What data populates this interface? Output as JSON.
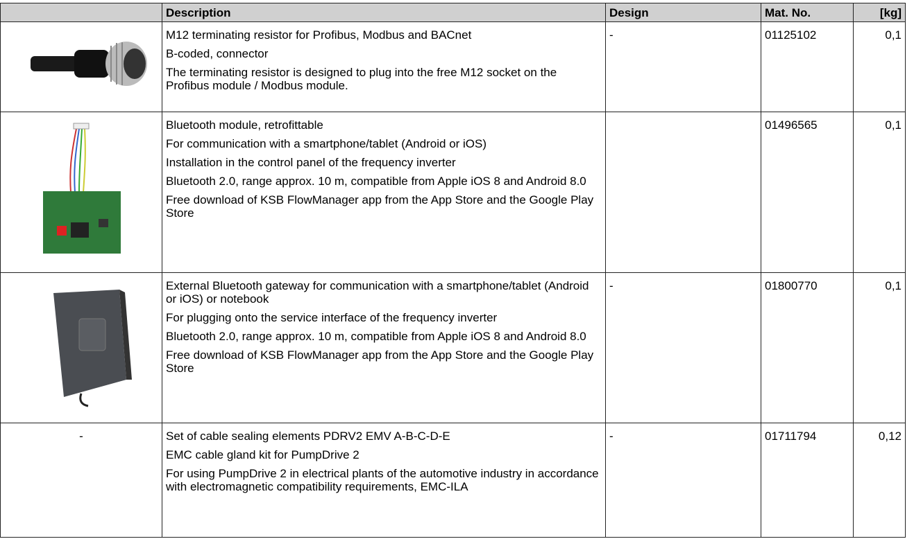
{
  "table": {
    "header": [
      "Description",
      "Design",
      "Mat. No.",
      "[kg]"
    ],
    "rows": [
      {
        "description": [
          "M12 terminating resistor for Profibus, Modbus and BACnet",
          "B-coded, connector",
          "The terminating resistor is designed to plug into the free M12 socket on the Profibus module / Modbus module."
        ],
        "design": "-",
        "mat_no": "01125102",
        "weight": "0,1"
      },
      {
        "description": [
          "Bluetooth module, retrofittable",
          "For communication with a smartphone/tablet (Android or iOS)",
          "Installation in the control panel of the frequency inverter",
          "Bluetooth 2.0, range approx. 10 m, compatible from Apple iOS 8 and Android 8.0",
          "Free download of KSB FlowManager app from the App Store and the Google Play Store"
        ],
        "mat_no": "01496565",
        "weight": "0,1"
      },
      {
        "description": [
          "External Bluetooth gateway for communication with a smartphone/tablet (Android or iOS) or notebook",
          "For plugging onto the service interface of the frequency inverter",
          "Bluetooth 2.0, range approx. 10 m, compatible from Apple iOS 8 and Android 8.0",
          "Free download of KSB FlowManager app from the App Store and the Google Play Store"
        ],
        "design": "-",
        "mat_no": "01800770",
        "weight": "0,1"
      },
      {
        "image": "-",
        "description": [
          "Set of cable sealing elements PDRV2 EMV A-B-C-D-E",
          "EMC cable gland kit for PumpDrive 2",
          "For using PumpDrive 2 in electrical plants of the automotive industry in accordance with electromagnetic compatibility requirements, EMC-ILA"
        ],
        "design": "-",
        "mat_no": "01711794",
        "weight": "0,12"
      }
    ]
  }
}
